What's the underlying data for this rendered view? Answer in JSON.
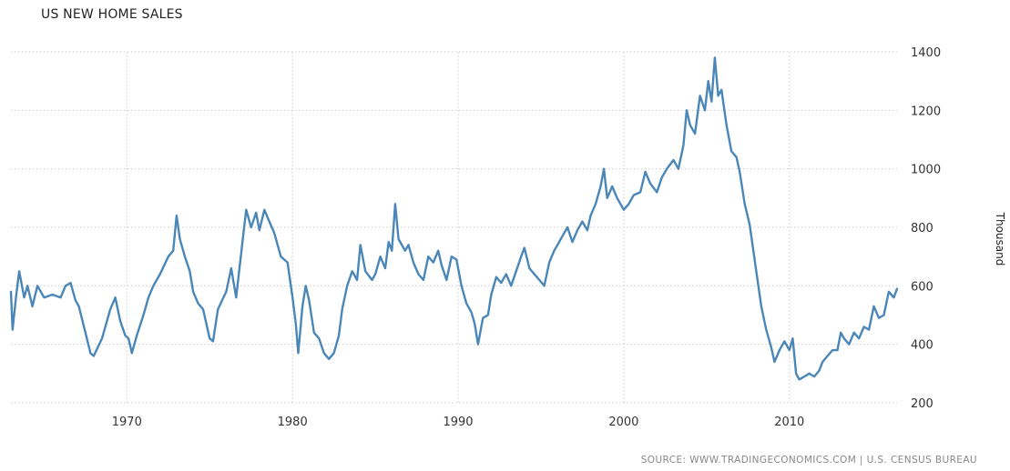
{
  "chart_data": {
    "type": "line",
    "title": "US NEW HOME SALES",
    "ylabel": "Thousand",
    "xlabel": "",
    "source": "SOURCE: WWW.TRADINGECONOMICS.COM | U.S. CENSUS BUREAU",
    "xlim": [
      1963,
      2016.5
    ],
    "ylim": [
      200,
      1400
    ],
    "x_ticks": [
      1970,
      1980,
      1990,
      2000,
      2010
    ],
    "y_ticks": [
      200,
      400,
      600,
      800,
      1000,
      1200,
      1400
    ],
    "grid": true,
    "y_axis_side": "right",
    "colors": {
      "line": "#4a86b8",
      "grid": "#cccccc"
    },
    "series": [
      {
        "values": [
          [
            1963.0,
            580
          ],
          [
            1963.1,
            450
          ],
          [
            1963.3,
            560
          ],
          [
            1963.5,
            650
          ],
          [
            1963.8,
            560
          ],
          [
            1964.0,
            600
          ],
          [
            1964.3,
            530
          ],
          [
            1964.6,
            600
          ],
          [
            1965.0,
            560
          ],
          [
            1965.5,
            570
          ],
          [
            1966.0,
            560
          ],
          [
            1966.3,
            600
          ],
          [
            1966.6,
            610
          ],
          [
            1966.9,
            550
          ],
          [
            1967.1,
            530
          ],
          [
            1967.5,
            440
          ],
          [
            1967.8,
            370
          ],
          [
            1968.0,
            360
          ],
          [
            1968.5,
            420
          ],
          [
            1968.8,
            480
          ],
          [
            1969.0,
            520
          ],
          [
            1969.3,
            560
          ],
          [
            1969.6,
            480
          ],
          [
            1969.9,
            430
          ],
          [
            1970.1,
            420
          ],
          [
            1970.3,
            370
          ],
          [
            1970.6,
            430
          ],
          [
            1971.0,
            500
          ],
          [
            1971.3,
            560
          ],
          [
            1971.6,
            600
          ],
          [
            1972.0,
            640
          ],
          [
            1972.5,
            700
          ],
          [
            1972.8,
            720
          ],
          [
            1973.0,
            840
          ],
          [
            1973.2,
            760
          ],
          [
            1973.5,
            700
          ],
          [
            1973.8,
            650
          ],
          [
            1974.0,
            580
          ],
          [
            1974.3,
            540
          ],
          [
            1974.6,
            520
          ],
          [
            1975.0,
            420
          ],
          [
            1975.2,
            410
          ],
          [
            1975.5,
            520
          ],
          [
            1976.0,
            580
          ],
          [
            1976.3,
            660
          ],
          [
            1976.6,
            560
          ],
          [
            1977.0,
            760
          ],
          [
            1977.2,
            860
          ],
          [
            1977.5,
            800
          ],
          [
            1977.8,
            850
          ],
          [
            1978.0,
            790
          ],
          [
            1978.3,
            860
          ],
          [
            1978.6,
            820
          ],
          [
            1978.9,
            780
          ],
          [
            1979.3,
            700
          ],
          [
            1979.7,
            680
          ],
          [
            1980.0,
            560
          ],
          [
            1980.2,
            470
          ],
          [
            1980.35,
            370
          ],
          [
            1980.6,
            530
          ],
          [
            1980.8,
            600
          ],
          [
            1981.0,
            550
          ],
          [
            1981.3,
            440
          ],
          [
            1981.6,
            420
          ],
          [
            1981.9,
            370
          ],
          [
            1982.2,
            350
          ],
          [
            1982.5,
            370
          ],
          [
            1982.8,
            430
          ],
          [
            1983.0,
            520
          ],
          [
            1983.3,
            600
          ],
          [
            1983.6,
            650
          ],
          [
            1983.9,
            620
          ],
          [
            1984.1,
            740
          ],
          [
            1984.4,
            650
          ],
          [
            1984.8,
            620
          ],
          [
            1985.0,
            640
          ],
          [
            1985.3,
            700
          ],
          [
            1985.6,
            660
          ],
          [
            1985.8,
            750
          ],
          [
            1986.0,
            720
          ],
          [
            1986.2,
            880
          ],
          [
            1986.4,
            760
          ],
          [
            1986.8,
            720
          ],
          [
            1987.0,
            740
          ],
          [
            1987.3,
            680
          ],
          [
            1987.6,
            640
          ],
          [
            1987.9,
            620
          ],
          [
            1988.2,
            700
          ],
          [
            1988.5,
            680
          ],
          [
            1988.8,
            720
          ],
          [
            1989.0,
            670
          ],
          [
            1989.3,
            620
          ],
          [
            1989.6,
            700
          ],
          [
            1989.9,
            690
          ],
          [
            1990.2,
            600
          ],
          [
            1990.5,
            540
          ],
          [
            1990.8,
            510
          ],
          [
            1991.0,
            470
          ],
          [
            1991.2,
            400
          ],
          [
            1991.5,
            490
          ],
          [
            1991.8,
            500
          ],
          [
            1992.0,
            570
          ],
          [
            1992.3,
            630
          ],
          [
            1992.6,
            610
          ],
          [
            1992.9,
            640
          ],
          [
            1993.2,
            600
          ],
          [
            1993.5,
            650
          ],
          [
            1993.8,
            700
          ],
          [
            1994.0,
            730
          ],
          [
            1994.3,
            660
          ],
          [
            1994.6,
            640
          ],
          [
            1994.9,
            620
          ],
          [
            1995.2,
            600
          ],
          [
            1995.5,
            680
          ],
          [
            1995.8,
            720
          ],
          [
            1996.0,
            740
          ],
          [
            1996.3,
            770
          ],
          [
            1996.6,
            800
          ],
          [
            1996.9,
            750
          ],
          [
            1997.2,
            790
          ],
          [
            1997.5,
            820
          ],
          [
            1997.8,
            790
          ],
          [
            1998.0,
            840
          ],
          [
            1998.3,
            880
          ],
          [
            1998.6,
            940
          ],
          [
            1998.8,
            1000
          ],
          [
            1999.0,
            900
          ],
          [
            1999.3,
            940
          ],
          [
            1999.6,
            900
          ],
          [
            2000.0,
            860
          ],
          [
            2000.3,
            880
          ],
          [
            2000.6,
            910
          ],
          [
            2001.0,
            920
          ],
          [
            2001.3,
            990
          ],
          [
            2001.6,
            950
          ],
          [
            2002.0,
            920
          ],
          [
            2002.3,
            970
          ],
          [
            2002.6,
            1000
          ],
          [
            2003.0,
            1030
          ],
          [
            2003.3,
            1000
          ],
          [
            2003.6,
            1080
          ],
          [
            2003.8,
            1200
          ],
          [
            2004.0,
            1150
          ],
          [
            2004.3,
            1120
          ],
          [
            2004.6,
            1250
          ],
          [
            2004.9,
            1200
          ],
          [
            2005.1,
            1300
          ],
          [
            2005.3,
            1230
          ],
          [
            2005.5,
            1380
          ],
          [
            2005.7,
            1250
          ],
          [
            2005.9,
            1270
          ],
          [
            2006.2,
            1150
          ],
          [
            2006.5,
            1060
          ],
          [
            2006.8,
            1040
          ],
          [
            2007.0,
            990
          ],
          [
            2007.3,
            880
          ],
          [
            2007.6,
            810
          ],
          [
            2008.0,
            650
          ],
          [
            2008.3,
            530
          ],
          [
            2008.6,
            450
          ],
          [
            2008.9,
            390
          ],
          [
            2009.1,
            340
          ],
          [
            2009.4,
            380
          ],
          [
            2009.7,
            410
          ],
          [
            2010.0,
            380
          ],
          [
            2010.2,
            420
          ],
          [
            2010.4,
            300
          ],
          [
            2010.6,
            280
          ],
          [
            2010.9,
            290
          ],
          [
            2011.2,
            300
          ],
          [
            2011.5,
            290
          ],
          [
            2011.8,
            310
          ],
          [
            2012.0,
            340
          ],
          [
            2012.3,
            360
          ],
          [
            2012.6,
            380
          ],
          [
            2012.9,
            380
          ],
          [
            2013.1,
            440
          ],
          [
            2013.3,
            420
          ],
          [
            2013.6,
            400
          ],
          [
            2013.9,
            440
          ],
          [
            2014.2,
            420
          ],
          [
            2014.5,
            460
          ],
          [
            2014.8,
            450
          ],
          [
            2015.1,
            530
          ],
          [
            2015.4,
            490
          ],
          [
            2015.7,
            500
          ],
          [
            2016.0,
            580
          ],
          [
            2016.3,
            560
          ],
          [
            2016.5,
            590
          ]
        ]
      }
    ]
  }
}
